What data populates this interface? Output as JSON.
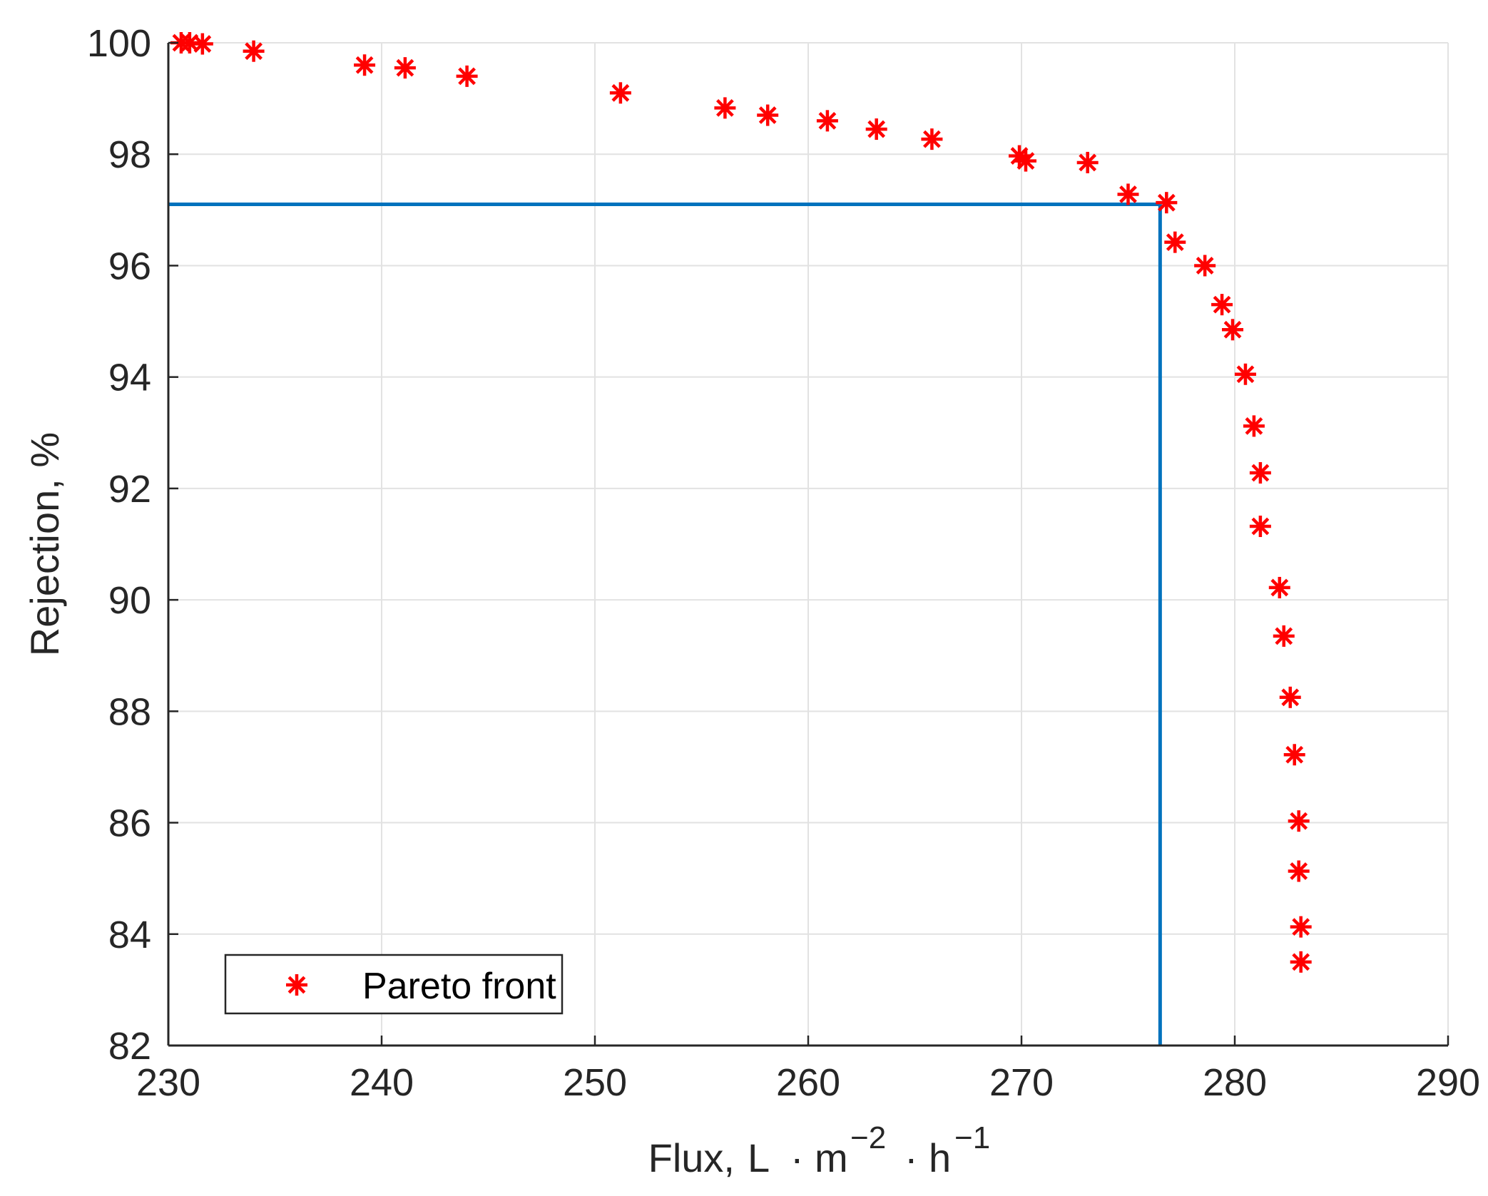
{
  "chart_data": {
    "type": "scatter",
    "title": "",
    "xlabel": "Flux,",
    "xlabel_unit": {
      "L": "L",
      "dot": "·",
      "m": "m",
      "m_exp": "−2",
      "h": "h",
      "h_exp": "−1"
    },
    "ylabel": "Rejection, %",
    "xlim": [
      230,
      290
    ],
    "ylim": [
      82,
      100
    ],
    "xticks": [
      "230",
      "240",
      "250",
      "260",
      "270",
      "280",
      "290"
    ],
    "yticks": [
      "82",
      "84",
      "86",
      "88",
      "90",
      "92",
      "94",
      "96",
      "98",
      "100"
    ],
    "grid": true,
    "legend_position": "bottom-left",
    "series": [
      {
        "name": "Pareto front",
        "marker": "asterisk",
        "color": "#ff0000",
        "points": [
          [
            230.6,
            100.0
          ],
          [
            231.0,
            100.0
          ],
          [
            231.6,
            99.98
          ],
          [
            234.0,
            99.85
          ],
          [
            239.2,
            99.6
          ],
          [
            241.1,
            99.55
          ],
          [
            244.0,
            99.4
          ],
          [
            251.2,
            99.1
          ],
          [
            256.1,
            98.83
          ],
          [
            258.1,
            98.7
          ],
          [
            260.9,
            98.6
          ],
          [
            263.2,
            98.45
          ],
          [
            265.8,
            98.27
          ],
          [
            269.9,
            97.97
          ],
          [
            270.2,
            97.88
          ],
          [
            273.1,
            97.85
          ],
          [
            275.0,
            97.28
          ],
          [
            276.8,
            97.13
          ],
          [
            277.2,
            96.42
          ],
          [
            278.6,
            96.0
          ],
          [
            279.4,
            95.3
          ],
          [
            279.9,
            94.85
          ],
          [
            280.5,
            94.05
          ],
          [
            280.9,
            93.12
          ],
          [
            281.2,
            92.28
          ],
          [
            281.2,
            91.32
          ],
          [
            282.1,
            90.22
          ],
          [
            282.3,
            89.35
          ],
          [
            282.6,
            88.25
          ],
          [
            282.8,
            87.22
          ],
          [
            283.0,
            86.03
          ],
          [
            283.0,
            85.13
          ],
          [
            283.1,
            84.13
          ],
          [
            283.1,
            83.5
          ]
        ]
      }
    ],
    "reference_lines": {
      "color": "#0072bd",
      "x": 276.5,
      "y": 97.1
    }
  }
}
